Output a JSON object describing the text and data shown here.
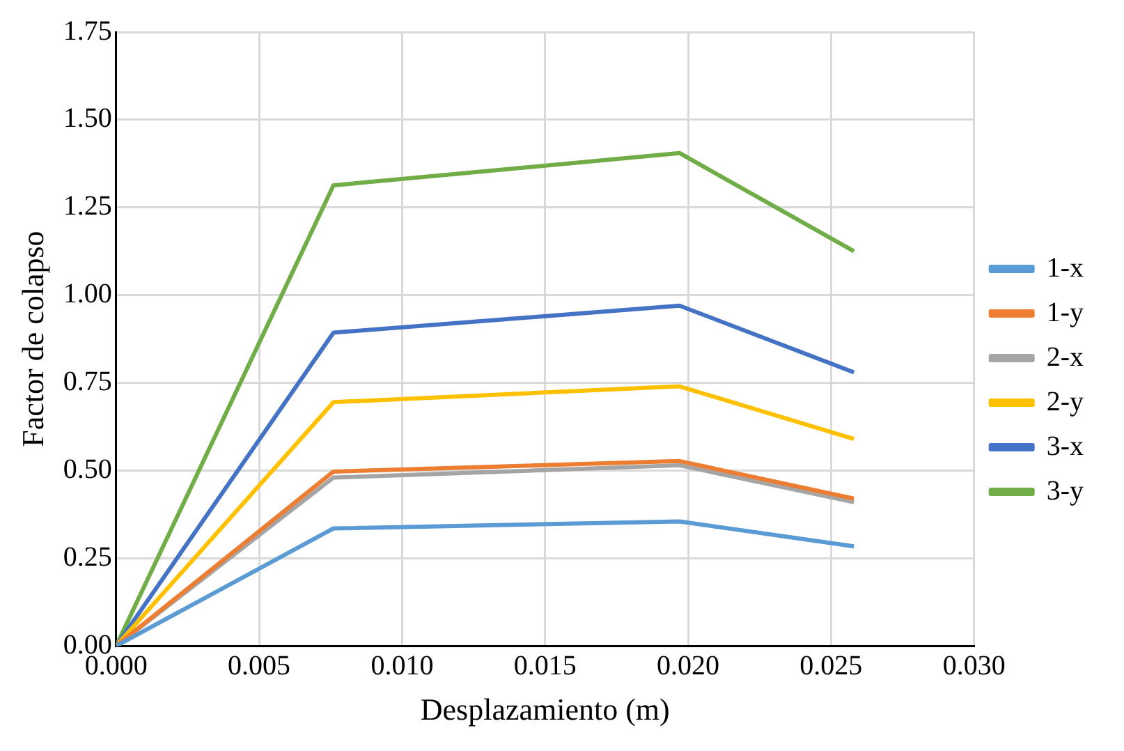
{
  "chart_data": {
    "type": "line",
    "xlabel": "Desplazamiento (m)",
    "ylabel": "Factor de colapso",
    "x": [
      0,
      0.0076,
      0.0197,
      0.0258
    ],
    "series": [
      {
        "name": "1-x",
        "color": "#5b9bd5",
        "values": [
          0,
          0.335,
          0.355,
          0.284
        ]
      },
      {
        "name": "1-y",
        "color": "#ed7d31",
        "values": [
          0,
          0.497,
          0.527,
          0.42
        ]
      },
      {
        "name": "2-x",
        "color": "#a5a5a5",
        "values": [
          0,
          0.48,
          0.515,
          0.41
        ]
      },
      {
        "name": "2-y",
        "color": "#ffc000",
        "values": [
          0,
          0.695,
          0.74,
          0.59
        ]
      },
      {
        "name": "3-x",
        "color": "#4472c4",
        "values": [
          0,
          0.893,
          0.97,
          0.78
        ]
      },
      {
        "name": "3-y",
        "color": "#70ad47",
        "values": [
          0,
          1.313,
          1.405,
          1.125
        ]
      }
    ],
    "xlim": [
      0,
      0.03
    ],
    "xticks": [
      {
        "value": 0,
        "label": "0.000"
      },
      {
        "value": 0.005,
        "label": "0.005"
      },
      {
        "value": 0.01,
        "label": "0.010"
      },
      {
        "value": 0.015,
        "label": "0.015"
      },
      {
        "value": 0.02,
        "label": "0.020"
      },
      {
        "value": 0.025,
        "label": "0.025"
      },
      {
        "value": 0.03,
        "label": "0.030"
      }
    ],
    "ylim": [
      0,
      1.75
    ],
    "yticks": [
      {
        "value": 0,
        "label": "0.00"
      },
      {
        "value": 0.25,
        "label": "0.25"
      },
      {
        "value": 0.5,
        "label": "0.50"
      },
      {
        "value": 0.75,
        "label": "0.75"
      },
      {
        "value": 1,
        "label": "1.00"
      },
      {
        "value": 1.25,
        "label": "1.25"
      },
      {
        "value": 1.5,
        "label": "1.50"
      },
      {
        "value": 1.75,
        "label": "1.75"
      }
    ],
    "grid": true,
    "legend": "right",
    "marker": "none",
    "line_style": "solid"
  }
}
